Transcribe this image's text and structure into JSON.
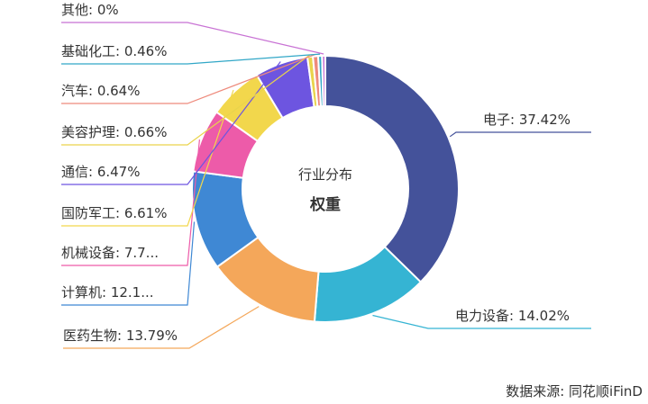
{
  "chart_data": {
    "type": "pie",
    "donut": true,
    "center_subtitle": "行业分布",
    "center_title": "权重",
    "slices": [
      {
        "name": "电子",
        "value": 37.42,
        "label": "电子: 37.42%",
        "color": "#44529a"
      },
      {
        "name": "电力设备",
        "value": 14.02,
        "label": "电力设备: 14.02%",
        "color": "#35b4d3"
      },
      {
        "name": "医药生物",
        "value": 13.79,
        "label": "医药生物: 13.79%",
        "color": "#f4a75a"
      },
      {
        "name": "计算机",
        "value": 12.1,
        "label": "计算机: 12.1...",
        "color": "#3f88d4"
      },
      {
        "name": "机械设备",
        "value": 7.7,
        "label": "机械设备: 7.7...",
        "color": "#ed5ba9"
      },
      {
        "name": "国防军工",
        "value": 6.61,
        "label": "国防军工: 6.61%",
        "color": "#f2d74c"
      },
      {
        "name": "通信",
        "value": 6.47,
        "label": "通信: 6.47%",
        "color": "#6d55e0"
      },
      {
        "name": "美容护理",
        "value": 0.66,
        "label": "美容护理: 0.66%",
        "color": "#e9d44c"
      },
      {
        "name": "汽车",
        "value": 0.64,
        "label": "汽车: 0.64%",
        "color": "#ee8a7c"
      },
      {
        "name": "基础化工",
        "value": 0.46,
        "label": "基础化工: 0.46%",
        "color": "#31a7c7"
      },
      {
        "name": "其他",
        "value": 0,
        "label": "其他: 0%",
        "color": "#c872d4"
      }
    ]
  },
  "source_note": "数据来源: 同花顺iFinD"
}
